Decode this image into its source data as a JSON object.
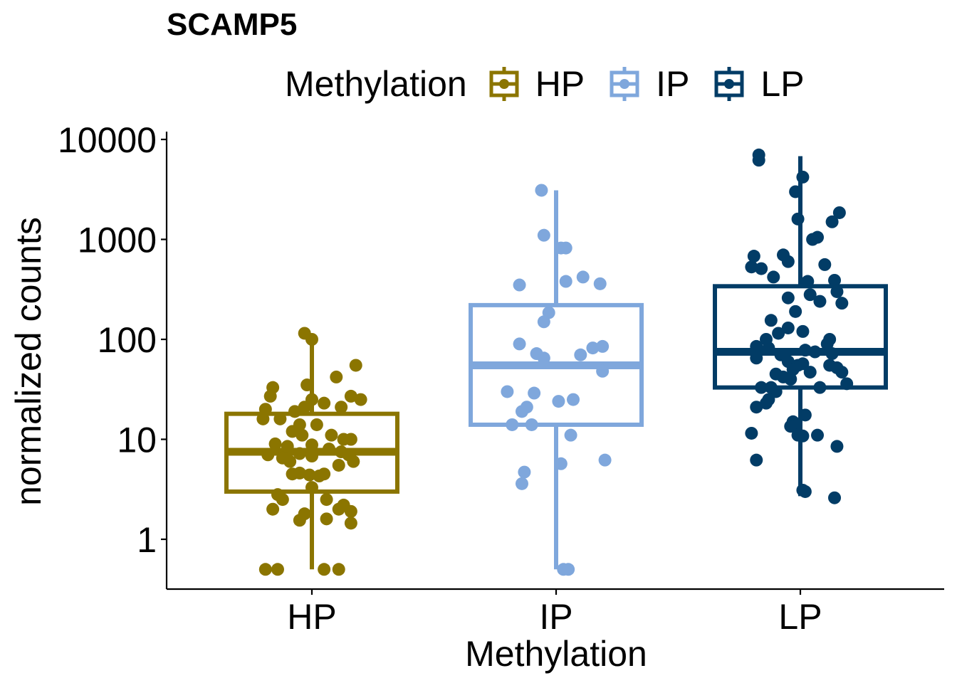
{
  "title": "SCAMP5",
  "legend": {
    "title": "Methylation",
    "items": [
      {
        "label": "HP",
        "color": "#8B7500"
      },
      {
        "label": "IP",
        "color": "#7FA7DC"
      },
      {
        "label": "LP",
        "color": "#023C66"
      }
    ]
  },
  "chart_data": {
    "type": "boxplot",
    "title": "SCAMP5",
    "xlabel": "Methylation",
    "ylabel": "normalized counts",
    "y_scale": "log10",
    "ylim": [
      0.35,
      9000
    ],
    "y_ticks": [
      1,
      10,
      100,
      1000,
      10000
    ],
    "y_tick_labels": [
      "1",
      "10",
      "100",
      "1000",
      "10000"
    ],
    "grid": false,
    "legend_position": "top",
    "categories": [
      "HP",
      "IP",
      "LP"
    ],
    "boxes": [
      {
        "group": "HP",
        "color": "#8B7500",
        "whisker_low": 0.5,
        "q1": 3.0,
        "median": 7.5,
        "q3": 18.0,
        "whisker_high": 100
      },
      {
        "group": "IP",
        "color": "#7FA7DC",
        "whisker_low": 0.5,
        "q1": 14,
        "median": 55,
        "q3": 220,
        "whisker_high": 3100
      },
      {
        "group": "LP",
        "color": "#023C66",
        "whisker_low": 2.7,
        "q1": 33,
        "median": 75,
        "q3": 340,
        "whisker_high": 6800
      }
    ],
    "points": {
      "HP": [
        {
          "x": 0.97,
          "y": 115
        },
        {
          "x": 1.0,
          "y": 100
        },
        {
          "x": 0.84,
          "y": 33
        },
        {
          "x": 0.98,
          "y": 35
        },
        {
          "x": 1.1,
          "y": 42
        },
        {
          "x": 1.18,
          "y": 55
        },
        {
          "x": 0.83,
          "y": 27
        },
        {
          "x": 1.0,
          "y": 25
        },
        {
          "x": 1.05,
          "y": 23
        },
        {
          "x": 1.16,
          "y": 27
        },
        {
          "x": 1.2,
          "y": 25
        },
        {
          "x": 0.81,
          "y": 20
        },
        {
          "x": 0.93,
          "y": 19
        },
        {
          "x": 0.97,
          "y": 21
        },
        {
          "x": 1.12,
          "y": 21
        },
        {
          "x": 0.8,
          "y": 16
        },
        {
          "x": 0.87,
          "y": 16
        },
        {
          "x": 0.95,
          "y": 14
        },
        {
          "x": 1.02,
          "y": 14
        },
        {
          "x": 0.92,
          "y": 12
        },
        {
          "x": 0.96,
          "y": 11
        },
        {
          "x": 1.08,
          "y": 11
        },
        {
          "x": 1.13,
          "y": 10
        },
        {
          "x": 1.16,
          "y": 10
        },
        {
          "x": 0.85,
          "y": 9
        },
        {
          "x": 0.9,
          "y": 8.5
        },
        {
          "x": 1.0,
          "y": 8.8
        },
        {
          "x": 1.07,
          "y": 8
        },
        {
          "x": 0.82,
          "y": 7
        },
        {
          "x": 0.95,
          "y": 7.2
        },
        {
          "x": 1.12,
          "y": 7.5
        },
        {
          "x": 1.15,
          "y": 7
        },
        {
          "x": 0.88,
          "y": 6.5
        },
        {
          "x": 1.0,
          "y": 6.8
        },
        {
          "x": 1.17,
          "y": 6
        },
        {
          "x": 0.91,
          "y": 6
        },
        {
          "x": 1.11,
          "y": 5.5
        },
        {
          "x": 0.92,
          "y": 4.5
        },
        {
          "x": 0.95,
          "y": 4.6
        },
        {
          "x": 0.99,
          "y": 4.4
        },
        {
          "x": 1.03,
          "y": 4.3
        },
        {
          "x": 1.05,
          "y": 4.5
        },
        {
          "x": 1.0,
          "y": 3.3
        },
        {
          "x": 0.86,
          "y": 2.8
        },
        {
          "x": 0.88,
          "y": 2.5
        },
        {
          "x": 1.06,
          "y": 2.5
        },
        {
          "x": 1.13,
          "y": 2.2
        },
        {
          "x": 0.84,
          "y": 2.0
        },
        {
          "x": 1.11,
          "y": 2.0
        },
        {
          "x": 1.16,
          "y": 1.9
        },
        {
          "x": 0.97,
          "y": 1.8
        },
        {
          "x": 0.95,
          "y": 1.55
        },
        {
          "x": 1.06,
          "y": 1.6
        },
        {
          "x": 1.16,
          "y": 1.45
        },
        {
          "x": 0.81,
          "y": 0.5
        },
        {
          "x": 0.86,
          "y": 0.5
        },
        {
          "x": 1.05,
          "y": 0.5
        },
        {
          "x": 1.11,
          "y": 0.5
        }
      ],
      "IP": [
        {
          "x": 1.94,
          "y": 3100
        },
        {
          "x": 1.95,
          "y": 1100
        },
        {
          "x": 2.02,
          "y": 820
        },
        {
          "x": 2.04,
          "y": 820
        },
        {
          "x": 1.85,
          "y": 350
        },
        {
          "x": 2.04,
          "y": 380
        },
        {
          "x": 2.11,
          "y": 420
        },
        {
          "x": 2.18,
          "y": 360
        },
        {
          "x": 1.97,
          "y": 185
        },
        {
          "x": 1.95,
          "y": 150
        },
        {
          "x": 1.85,
          "y": 90
        },
        {
          "x": 2.15,
          "y": 82
        },
        {
          "x": 2.19,
          "y": 85
        },
        {
          "x": 1.92,
          "y": 72
        },
        {
          "x": 1.95,
          "y": 65
        },
        {
          "x": 2.1,
          "y": 70
        },
        {
          "x": 2.19,
          "y": 48
        },
        {
          "x": 1.8,
          "y": 30
        },
        {
          "x": 1.91,
          "y": 29
        },
        {
          "x": 2.01,
          "y": 24
        },
        {
          "x": 2.07,
          "y": 25
        },
        {
          "x": 1.88,
          "y": 21
        },
        {
          "x": 1.86,
          "y": 19
        },
        {
          "x": 1.82,
          "y": 14
        },
        {
          "x": 1.9,
          "y": 14
        },
        {
          "x": 2.06,
          "y": 11
        },
        {
          "x": 2.2,
          "y": 6.2
        },
        {
          "x": 2.02,
          "y": 5.7
        },
        {
          "x": 1.87,
          "y": 4.7
        },
        {
          "x": 1.86,
          "y": 3.6
        },
        {
          "x": 2.03,
          "y": 0.5
        },
        {
          "x": 2.05,
          "y": 0.5
        }
      ],
      "LP": [
        {
          "x": 2.83,
          "y": 7000
        },
        {
          "x": 2.83,
          "y": 6200
        },
        {
          "x": 3.01,
          "y": 4200
        },
        {
          "x": 2.98,
          "y": 3000
        },
        {
          "x": 3.16,
          "y": 1850
        },
        {
          "x": 2.99,
          "y": 1600
        },
        {
          "x": 3.13,
          "y": 1500
        },
        {
          "x": 3.07,
          "y": 1050
        },
        {
          "x": 3.05,
          "y": 1000
        },
        {
          "x": 2.81,
          "y": 680
        },
        {
          "x": 2.93,
          "y": 700
        },
        {
          "x": 2.95,
          "y": 600
        },
        {
          "x": 2.8,
          "y": 530
        },
        {
          "x": 2.84,
          "y": 510
        },
        {
          "x": 3.1,
          "y": 560
        },
        {
          "x": 2.89,
          "y": 420
        },
        {
          "x": 3.03,
          "y": 380
        },
        {
          "x": 3.14,
          "y": 390
        },
        {
          "x": 3.15,
          "y": 300
        },
        {
          "x": 3.04,
          "y": 280
        },
        {
          "x": 2.95,
          "y": 260
        },
        {
          "x": 3.08,
          "y": 240
        },
        {
          "x": 3.17,
          "y": 230
        },
        {
          "x": 2.98,
          "y": 190
        },
        {
          "x": 2.88,
          "y": 155
        },
        {
          "x": 2.95,
          "y": 130
        },
        {
          "x": 3.01,
          "y": 120
        },
        {
          "x": 2.91,
          "y": 115
        },
        {
          "x": 2.86,
          "y": 100
        },
        {
          "x": 3.12,
          "y": 100
        },
        {
          "x": 3.11,
          "y": 90
        },
        {
          "x": 2.82,
          "y": 85
        },
        {
          "x": 2.87,
          "y": 82
        },
        {
          "x": 3.02,
          "y": 78
        },
        {
          "x": 3.06,
          "y": 75
        },
        {
          "x": 3.13,
          "y": 72
        },
        {
          "x": 2.92,
          "y": 70
        },
        {
          "x": 2.82,
          "y": 65
        },
        {
          "x": 2.95,
          "y": 60
        },
        {
          "x": 3.01,
          "y": 57
        },
        {
          "x": 2.99,
          "y": 55
        },
        {
          "x": 3.12,
          "y": 55
        },
        {
          "x": 3.15,
          "y": 52
        },
        {
          "x": 2.97,
          "y": 50
        },
        {
          "x": 3.04,
          "y": 47
        },
        {
          "x": 3.17,
          "y": 47
        },
        {
          "x": 2.9,
          "y": 45
        },
        {
          "x": 2.93,
          "y": 42
        },
        {
          "x": 2.96,
          "y": 40
        },
        {
          "x": 3.19,
          "y": 36
        },
        {
          "x": 2.84,
          "y": 33
        },
        {
          "x": 2.88,
          "y": 33
        },
        {
          "x": 3.08,
          "y": 33
        },
        {
          "x": 2.9,
          "y": 30
        },
        {
          "x": 2.87,
          "y": 25
        },
        {
          "x": 2.86,
          "y": 23
        },
        {
          "x": 2.82,
          "y": 21
        },
        {
          "x": 3.02,
          "y": 17.5
        },
        {
          "x": 2.97,
          "y": 15
        },
        {
          "x": 2.98,
          "y": 14
        },
        {
          "x": 2.96,
          "y": 13.5
        },
        {
          "x": 2.8,
          "y": 11.5
        },
        {
          "x": 2.99,
          "y": 11
        },
        {
          "x": 3.01,
          "y": 10.8
        },
        {
          "x": 3.07,
          "y": 11
        },
        {
          "x": 3.15,
          "y": 8.5
        },
        {
          "x": 2.82,
          "y": 6.2
        },
        {
          "x": 3.01,
          "y": 3.1
        },
        {
          "x": 3.02,
          "y": 3.0
        },
        {
          "x": 3.14,
          "y": 2.6
        }
      ]
    }
  }
}
